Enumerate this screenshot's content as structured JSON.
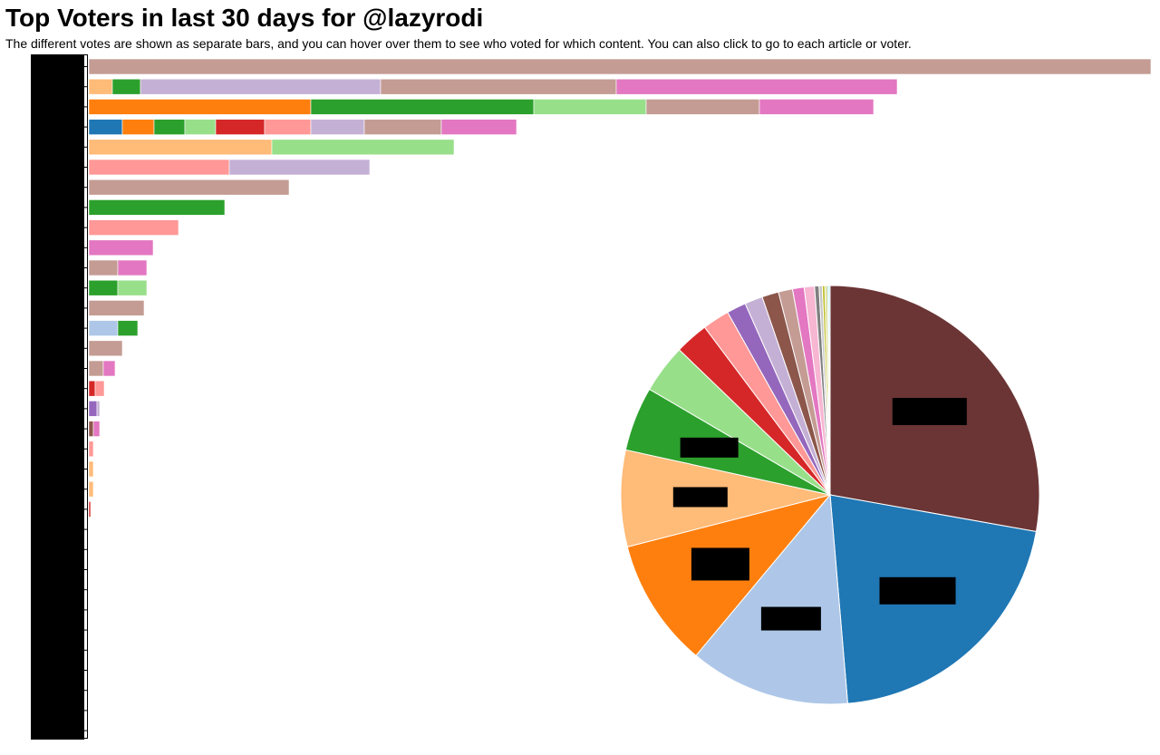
{
  "header": {
    "title": "Top Voters in last 30 days for @lazyrodi",
    "subtitle": "The different votes are shown as separate bars, and you can hover over them to see who voted for which content. You can also click to go to each article or voter."
  },
  "colors": {
    "palette": [
      "#1f77b4",
      "#aec7e8",
      "#ff7f0e",
      "#ffbb78",
      "#2ca02c",
      "#98df8a",
      "#d62728",
      "#ff9896",
      "#9467bd",
      "#c5b0d5",
      "#8c564b",
      "#c49c94",
      "#e377c2",
      "#f7b6d2",
      "#7f7f7f",
      "#c7c7c7",
      "#bcbd22",
      "#dbdb8d",
      "#17becf",
      "#9edae5"
    ],
    "redaction": "#000000",
    "tooltip_hint": "voter names hidden by black redaction boxes"
  },
  "chart_data": [
    {
      "type": "bar",
      "orientation": "horizontal",
      "stacked": true,
      "title": "",
      "xlabel": "",
      "ylabel": "",
      "voter_labels": "redacted",
      "rows": [
        {
          "segments": [
            {
              "color": "#c49c94",
              "value": 1172
            }
          ]
        },
        {
          "segments": [
            {
              "color": "#ffbb78",
              "value": 26
            },
            {
              "color": "#2ca02c",
              "value": 31
            },
            {
              "color": "#c5b0d5",
              "value": 265
            },
            {
              "color": "#c49c94",
              "value": 260
            },
            {
              "color": "#e377c2",
              "value": 310
            }
          ]
        },
        {
          "segments": [
            {
              "color": "#ff7f0e",
              "value": 245
            },
            {
              "color": "#2ca02c",
              "value": 246
            },
            {
              "color": "#98df8a",
              "value": 124
            },
            {
              "color": "#c49c94",
              "value": 125
            },
            {
              "color": "#e377c2",
              "value": 126
            }
          ]
        },
        {
          "segments": [
            {
              "color": "#1f77b4",
              "value": 37
            },
            {
              "color": "#ff7f0e",
              "value": 35
            },
            {
              "color": "#2ca02c",
              "value": 34
            },
            {
              "color": "#98df8a",
              "value": 34
            },
            {
              "color": "#d62728",
              "value": 54
            },
            {
              "color": "#ff9896",
              "value": 51
            },
            {
              "color": "#c5b0d5",
              "value": 59
            },
            {
              "color": "#c49c94",
              "value": 85
            },
            {
              "color": "#e377c2",
              "value": 83
            }
          ]
        },
        {
          "segments": [
            {
              "color": "#ffbb78",
              "value": 202
            },
            {
              "color": "#98df8a",
              "value": 201
            }
          ]
        },
        {
          "segments": [
            {
              "color": "#ff9896",
              "value": 155
            },
            {
              "color": "#c5b0d5",
              "value": 155
            }
          ]
        },
        {
          "segments": [
            {
              "color": "#c49c94",
              "value": 221
            }
          ]
        },
        {
          "segments": [
            {
              "color": "#2ca02c",
              "value": 150
            }
          ]
        },
        {
          "segments": [
            {
              "color": "#ff9896",
              "value": 99
            }
          ]
        },
        {
          "segments": [
            {
              "color": "#e377c2",
              "value": 71
            }
          ]
        },
        {
          "segments": [
            {
              "color": "#c49c94",
              "value": 32
            },
            {
              "color": "#e377c2",
              "value": 32
            }
          ]
        },
        {
          "segments": [
            {
              "color": "#2ca02c",
              "value": 32
            },
            {
              "color": "#98df8a",
              "value": 32
            }
          ]
        },
        {
          "segments": [
            {
              "color": "#c49c94",
              "value": 61
            }
          ]
        },
        {
          "segments": [
            {
              "color": "#aec7e8",
              "value": 32
            },
            {
              "color": "#2ca02c",
              "value": 22
            }
          ]
        },
        {
          "segments": [
            {
              "color": "#c49c94",
              "value": 37
            }
          ]
        },
        {
          "segments": [
            {
              "color": "#c49c94",
              "value": 16
            },
            {
              "color": "#e377c2",
              "value": 13
            }
          ]
        },
        {
          "segments": [
            {
              "color": "#d62728",
              "value": 7
            },
            {
              "color": "#ff9896",
              "value": 10
            }
          ]
        },
        {
          "segments": [
            {
              "color": "#9467bd",
              "value": 9
            },
            {
              "color": "#c5b0d5",
              "value": 3
            }
          ]
        },
        {
          "segments": [
            {
              "color": "#8c564b",
              "value": 5
            },
            {
              "color": "#e377c2",
              "value": 7
            }
          ]
        },
        {
          "segments": [
            {
              "color": "#ff9896",
              "value": 5
            }
          ]
        },
        {
          "segments": [
            {
              "color": "#ffbb78",
              "value": 5
            }
          ]
        },
        {
          "segments": [
            {
              "color": "#ffbb78",
              "value": 5
            }
          ]
        },
        {
          "segments": [
            {
              "color": "#d62728",
              "value": 2
            }
          ]
        },
        {
          "segments": []
        },
        {
          "segments": []
        },
        {
          "segments": []
        },
        {
          "segments": []
        },
        {
          "segments": []
        },
        {
          "segments": []
        },
        {
          "segments": []
        },
        {
          "segments": []
        },
        {
          "segments": []
        },
        {
          "segments": []
        },
        {
          "segments": []
        }
      ]
    },
    {
      "type": "pie",
      "title": "",
      "slice_labels": "redacted",
      "slices": [
        {
          "color": "#6b3535",
          "value": 28.0
        },
        {
          "color": "#1f77b4",
          "value": 21.0
        },
        {
          "color": "#aec7e8",
          "value": 12.5
        },
        {
          "color": "#ff7f0e",
          "value": 10.0
        },
        {
          "color": "#ffbb78",
          "value": 7.5
        },
        {
          "color": "#2ca02c",
          "value": 5.0
        },
        {
          "color": "#98df8a",
          "value": 3.8
        },
        {
          "color": "#d62728",
          "value": 2.6
        },
        {
          "color": "#ff9896",
          "value": 2.1
        },
        {
          "color": "#9467bd",
          "value": 1.5
        },
        {
          "color": "#c5b0d5",
          "value": 1.4
        },
        {
          "color": "#8c564b",
          "value": 1.3
        },
        {
          "color": "#c49c94",
          "value": 1.1
        },
        {
          "color": "#e377c2",
          "value": 0.9
        },
        {
          "color": "#f7b6d2",
          "value": 0.8
        },
        {
          "color": "#7f7f7f",
          "value": 0.35
        },
        {
          "color": "#c7c7c7",
          "value": 0.25
        },
        {
          "color": "#bcbd22",
          "value": 0.2
        },
        {
          "color": "#dbdb8d",
          "value": 0.2
        },
        {
          "color": "#17becf",
          "value": 0.1
        },
        {
          "color": "#9edae5",
          "value": 0.1
        }
      ],
      "redacted_label_slices": [
        0,
        1,
        2,
        3,
        4,
        5
      ]
    }
  ]
}
